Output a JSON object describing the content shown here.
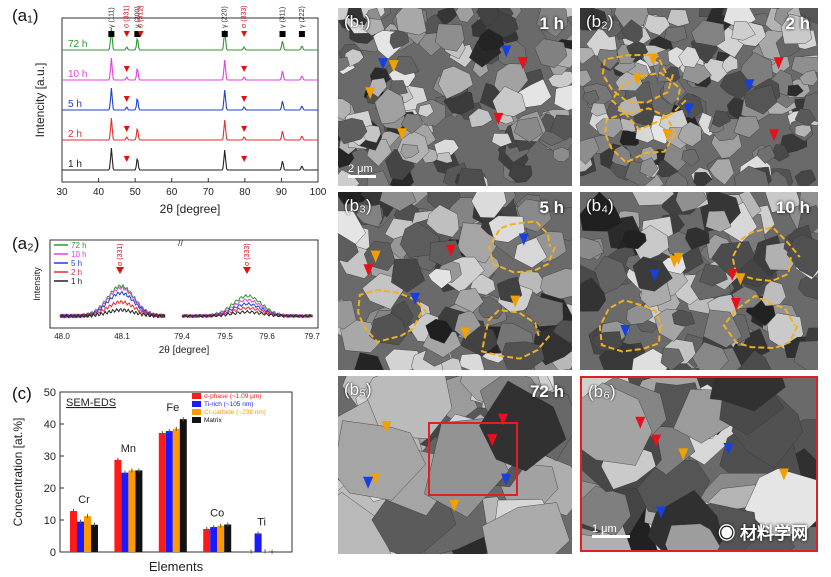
{
  "panels": {
    "a1": {
      "label": "(a₁)"
    },
    "a2": {
      "label": "(a₂)"
    },
    "c": {
      "label": "(c)"
    }
  },
  "chart_data": [
    {
      "type": "line",
      "panel": "a1",
      "xlabel": "2θ [degree]",
      "ylabel": "Intencity [a.u.]",
      "xlim": [
        30,
        100
      ],
      "xticks": [
        30,
        40,
        50,
        60,
        70,
        80,
        90,
        100
      ],
      "series": [
        {
          "name": "1 h",
          "color": "#222222",
          "peaks": [
            43.5,
            50.6,
            74.5,
            90.3,
            95.6
          ]
        },
        {
          "name": "2 h",
          "color": "#e03030",
          "peaks": [
            43.5,
            47.7,
            50.6,
            74.5,
            79.8,
            90.3,
            95.6
          ]
        },
        {
          "name": "5 h",
          "color": "#2040d0",
          "peaks": [
            43.5,
            47.7,
            50.6,
            74.5,
            79.8,
            90.3,
            95.6
          ]
        },
        {
          "name": "10 h",
          "color": "#e040e0",
          "peaks": [
            43.5,
            47.7,
            50.6,
            74.5,
            79.8,
            90.3,
            95.6
          ]
        },
        {
          "name": "72 h",
          "color": "#2a9a2a",
          "peaks": [
            43.5,
            47.7,
            50.6,
            74.5,
            79.8,
            90.3,
            95.6
          ]
        }
      ],
      "annotations": [
        {
          "text": "γ (111)",
          "x": 43.5,
          "marker": "square"
        },
        {
          "text": "σ (331)",
          "x": 47.7,
          "marker": "red-triangle"
        },
        {
          "text": "γ (200)",
          "x": 50.6,
          "marker": "square"
        },
        {
          "text": "σ (312)",
          "x": 51.5,
          "marker": "red-triangle"
        },
        {
          "text": "γ (220)",
          "x": 74.5,
          "marker": "square"
        },
        {
          "text": "σ (333)",
          "x": 79.8,
          "marker": "red-triangle"
        },
        {
          "text": "γ (311)",
          "x": 90.3,
          "marker": "square"
        },
        {
          "text": "γ (222)",
          "x": 95.6,
          "marker": "square"
        }
      ]
    },
    {
      "type": "line",
      "panel": "a2",
      "xlabel": "2θ [degree]",
      "ylabel": "Intensity",
      "xticks": [
        "48.0",
        "48.1",
        "79.4",
        "79.5",
        "79.6",
        "79.7"
      ],
      "legend": [
        "72 h",
        "10 h",
        "5 h",
        "2 h",
        "1 h"
      ],
      "annotations": [
        "σ (331)",
        "σ (333)"
      ]
    },
    {
      "type": "bar",
      "panel": "c",
      "title": "SEM-EDS",
      "xlabel": "Elements",
      "ylabel": "Concentration [at.%]",
      "ylim": [
        0,
        50
      ],
      "yticks": [
        0,
        10,
        20,
        30,
        40,
        50
      ],
      "categories": [
        "Cr",
        "Mn",
        "Fe",
        "Co",
        "Ti"
      ],
      "series": [
        {
          "name": "σ-phase (~1.09 μm)",
          "color": "#ff1a1a",
          "values": [
            12.8,
            28.8,
            37.2,
            7.2,
            0.1
          ]
        },
        {
          "name": "Ti-rich (~105 nm)",
          "color": "#1a1aff",
          "values": [
            9.5,
            24.8,
            37.8,
            7.8,
            5.8
          ]
        },
        {
          "name": "Cr-carbide (~238 nm)",
          "color": "#ff9900",
          "values": [
            11.2,
            25.5,
            38.5,
            8.2,
            0.2
          ]
        },
        {
          "name": "Matrix",
          "color": "#111111",
          "values": [
            8.5,
            25.5,
            41.5,
            8.6,
            0.1
          ]
        }
      ]
    }
  ],
  "micrographs": [
    {
      "label": "(b₁)",
      "time": "1 h"
    },
    {
      "label": "(b₂)",
      "time": "2 h"
    },
    {
      "label": "(b₃)",
      "time": "5 h"
    },
    {
      "label": "(b₄)",
      "time": "10 h"
    },
    {
      "label": "(b₅)",
      "time": "72 h"
    },
    {
      "label": "(b₆)",
      "time": ""
    }
  ],
  "scalebars": {
    "b1": "2 μm",
    "b6": "1 μm"
  },
  "watermark": "材料学网",
  "colors": {
    "sigma_marker": "#e8101a",
    "ti_marker": "#1840e0",
    "carbide_marker": "#f0a000",
    "boundary": "#f0b020",
    "frame_b6": "#e02020"
  }
}
